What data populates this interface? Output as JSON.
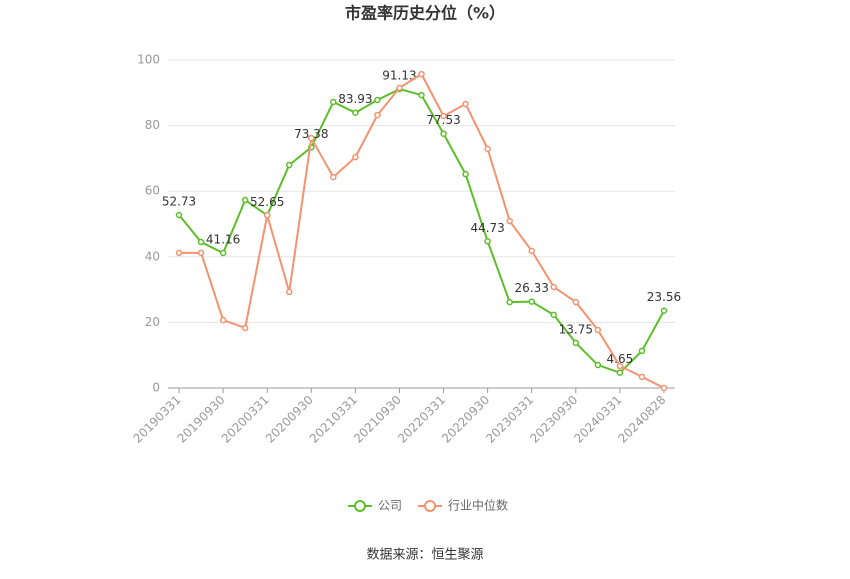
{
  "chart_data": {
    "type": "line",
    "title": "市盈率历史分位（%）",
    "categories": [
      "20190331",
      null,
      "20190930",
      null,
      "20200331",
      null,
      "20200930",
      null,
      "20210331",
      null,
      "20210930",
      null,
      "20220331",
      null,
      "20220930",
      null,
      "20230331",
      null,
      "20230930",
      null,
      "20240331",
      null,
      "20240828"
    ],
    "series": [
      {
        "name": "公司",
        "color": "#5cbf2a",
        "values": [
          52.73,
          44.5,
          41.16,
          57.3,
          52.65,
          68.0,
          73.38,
          87.2,
          83.93,
          87.8,
          91.13,
          89.3,
          77.53,
          65.2,
          44.73,
          26.2,
          26.33,
          22.3,
          13.75,
          7.0,
          4.65,
          11.3,
          23.56
        ]
      },
      {
        "name": "行业中位数",
        "color": "#f5926f",
        "values": [
          41.2,
          41.2,
          20.7,
          18.3,
          52.7,
          29.3,
          76.2,
          64.3,
          70.4,
          83.2,
          91.5,
          95.7,
          82.9,
          86.6,
          72.9,
          50.9,
          41.8,
          30.8,
          26.2,
          17.7,
          6.7,
          3.4,
          0
        ]
      }
    ],
    "ylim": [
      0,
      100
    ],
    "yticks": [
      0,
      20,
      40,
      60,
      80,
      100
    ],
    "grid": true,
    "source": "数据来源：恒生聚源"
  }
}
